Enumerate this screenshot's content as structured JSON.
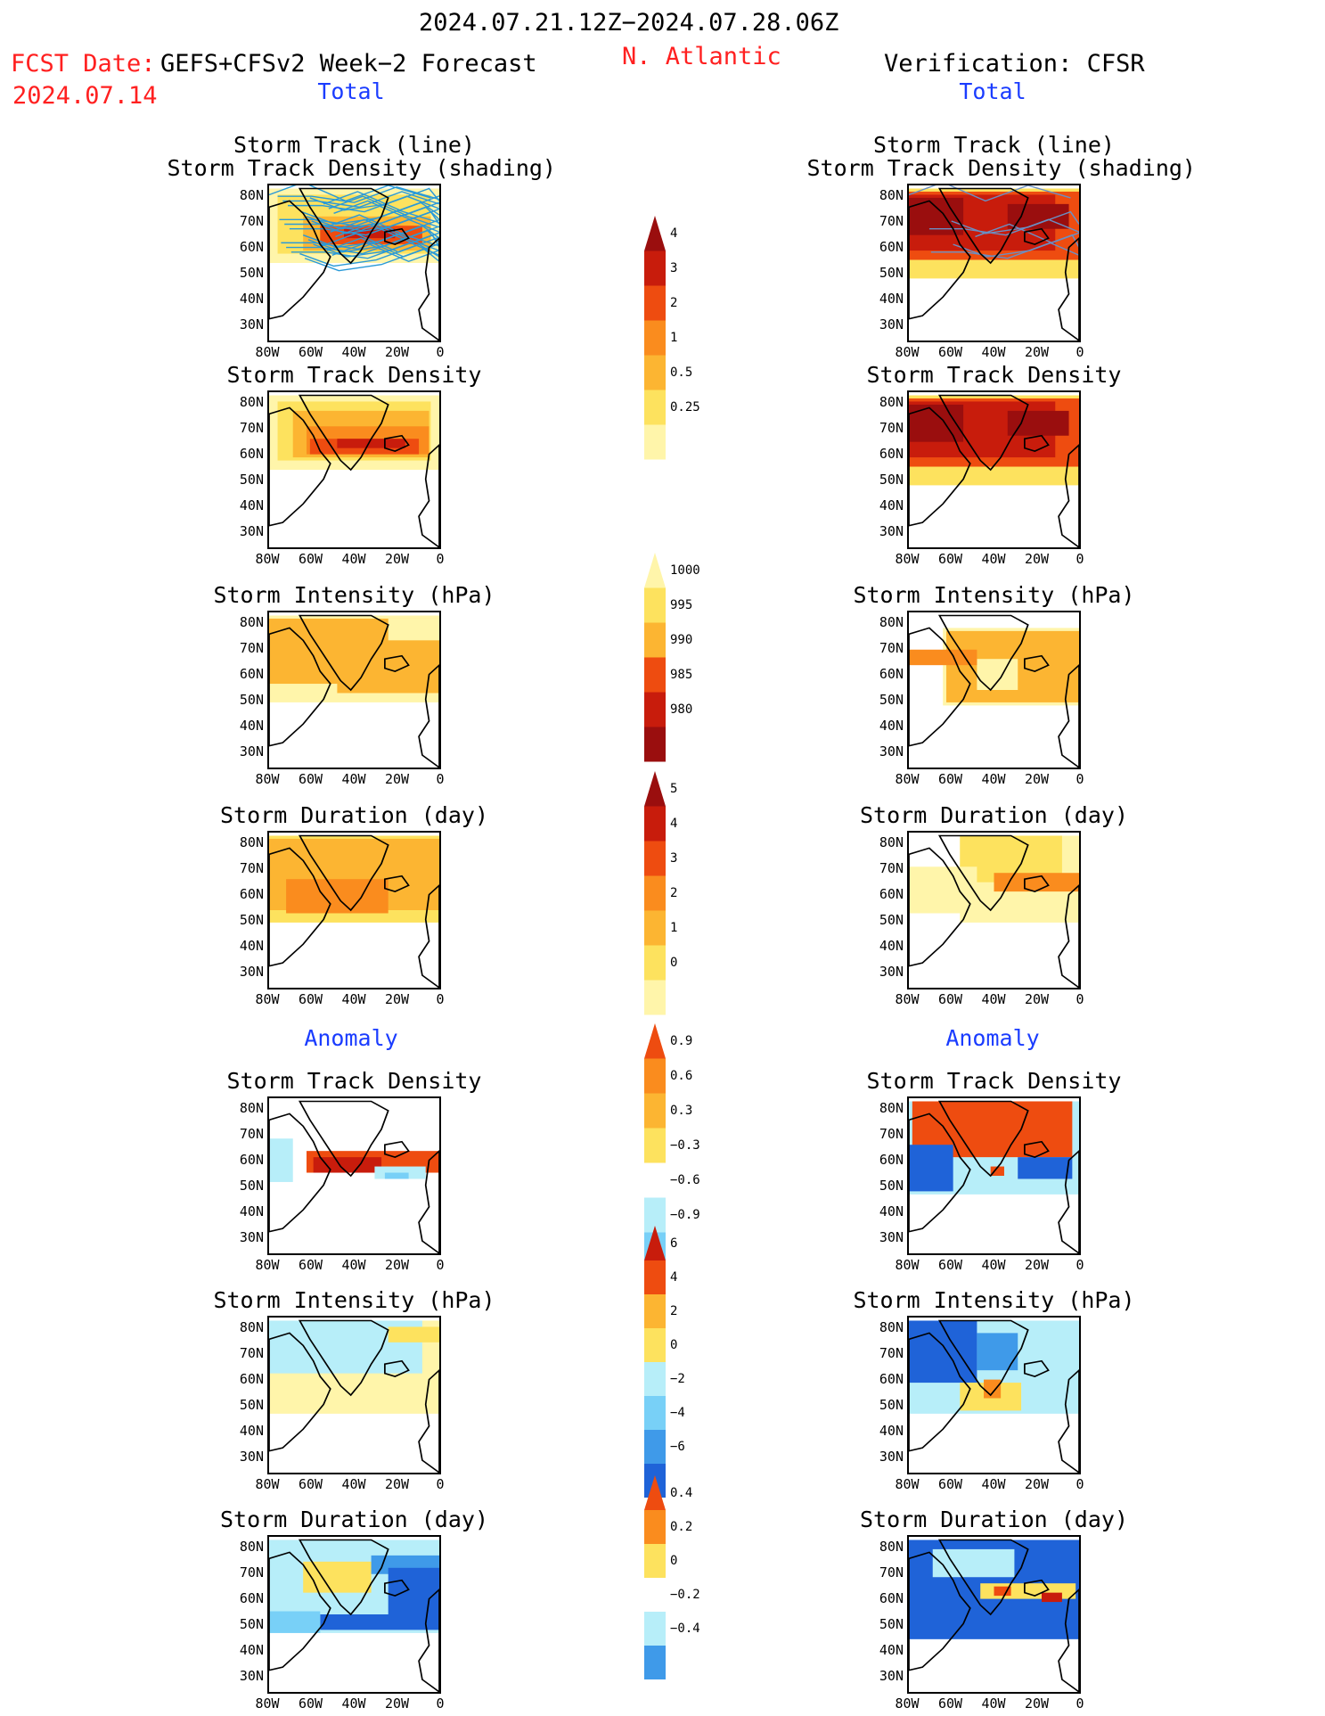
{
  "header": {
    "period": "2024.07.21.12Z−2024.07.28.06Z",
    "fcst_label": "FCST Date:",
    "fcst_model": "GEFS+CFSv2 Week−2 Forecast",
    "fcst_date": "2024.07.14",
    "region": "N. Atlantic",
    "verification": "Verification: CFSR",
    "left_section": "Total",
    "right_section": "Total",
    "left_anomaly": "Anomaly",
    "right_anomaly": "Anomaly"
  },
  "colors": {
    "text_red": "#ff2020",
    "text_blue": "#1a3cff",
    "pos": [
      "#fff5aa",
      "#fde25e",
      "#fcb532",
      "#fa8c1e",
      "#ee4c10",
      "#c81c0c",
      "#9a0e0e"
    ],
    "neg": [
      "#b7eef9",
      "#78d0f7",
      "#3f9ae9",
      "#1f63d8"
    ],
    "track_line": "#2a9ad8"
  },
  "axes": {
    "y_ticks": [
      "80N",
      "70N",
      "60N",
      "50N",
      "40N",
      "30N"
    ],
    "x_ticks": [
      "80W",
      "60W",
      "40W",
      "20W",
      "0"
    ]
  },
  "chart_data": [
    {
      "type": "heatmap",
      "column": "forecast",
      "group": "Total",
      "title_lines": [
        "Storm Track (line)",
        "Storm Track Density (shading)"
      ],
      "extent": "80W–0, 25N–85N"
    },
    {
      "type": "heatmap",
      "column": "forecast",
      "group": "Total",
      "title_lines": [
        "Storm Track Density"
      ]
    },
    {
      "type": "heatmap",
      "column": "forecast",
      "group": "Total",
      "title_lines": [
        "Storm Intensity (hPa)"
      ]
    },
    {
      "type": "heatmap",
      "column": "forecast",
      "group": "Total",
      "title_lines": [
        "Storm Duration (day)"
      ]
    },
    {
      "type": "heatmap",
      "column": "forecast",
      "group": "Anomaly",
      "title_lines": [
        "Storm Track Density"
      ]
    },
    {
      "type": "heatmap",
      "column": "forecast",
      "group": "Anomaly",
      "title_lines": [
        "Storm Intensity (hPa)"
      ]
    },
    {
      "type": "heatmap",
      "column": "forecast",
      "group": "Anomaly",
      "title_lines": [
        "Storm Duration (day)"
      ]
    },
    {
      "type": "heatmap",
      "column": "verification",
      "group": "Total",
      "title_lines": [
        "Storm Track (line)",
        "Storm Track Density (shading)"
      ]
    },
    {
      "type": "heatmap",
      "column": "verification",
      "group": "Total",
      "title_lines": [
        "Storm Track Density"
      ]
    },
    {
      "type": "heatmap",
      "column": "verification",
      "group": "Total",
      "title_lines": [
        "Storm Intensity (hPa)"
      ]
    },
    {
      "type": "heatmap",
      "column": "verification",
      "group": "Total",
      "title_lines": [
        "Storm Duration (day)"
      ]
    },
    {
      "type": "heatmap",
      "column": "verification",
      "group": "Anomaly",
      "title_lines": [
        "Storm Track Density"
      ]
    },
    {
      "type": "heatmap",
      "column": "verification",
      "group": "Anomaly",
      "title_lines": [
        "Storm Intensity (hPa)"
      ]
    },
    {
      "type": "heatmap",
      "column": "verification",
      "group": "Anomaly",
      "title_lines": [
        "Storm Duration (day)"
      ]
    }
  ],
  "colorbars": [
    {
      "name": "track-density",
      "levels": [
        "4",
        "3",
        "2",
        "1",
        "0.5",
        "0.25"
      ]
    },
    {
      "name": "intensity",
      "levels": [
        "1000",
        "995",
        "990",
        "985",
        "980"
      ]
    },
    {
      "name": "duration",
      "levels": [
        "5",
        "4",
        "3",
        "2",
        "1",
        "0"
      ]
    },
    {
      "name": "density-anomaly",
      "levels": [
        "0.9",
        "0.6",
        "0.3",
        "−0.3",
        "−0.6",
        "−0.9"
      ]
    },
    {
      "name": "intensity-anomaly",
      "levels": [
        "6",
        "4",
        "2",
        "0",
        "−2",
        "−4",
        "−6"
      ]
    },
    {
      "name": "duration-anomaly",
      "levels": [
        "0.4",
        "0.2",
        "0",
        "−0.2",
        "−0.4"
      ]
    }
  ]
}
